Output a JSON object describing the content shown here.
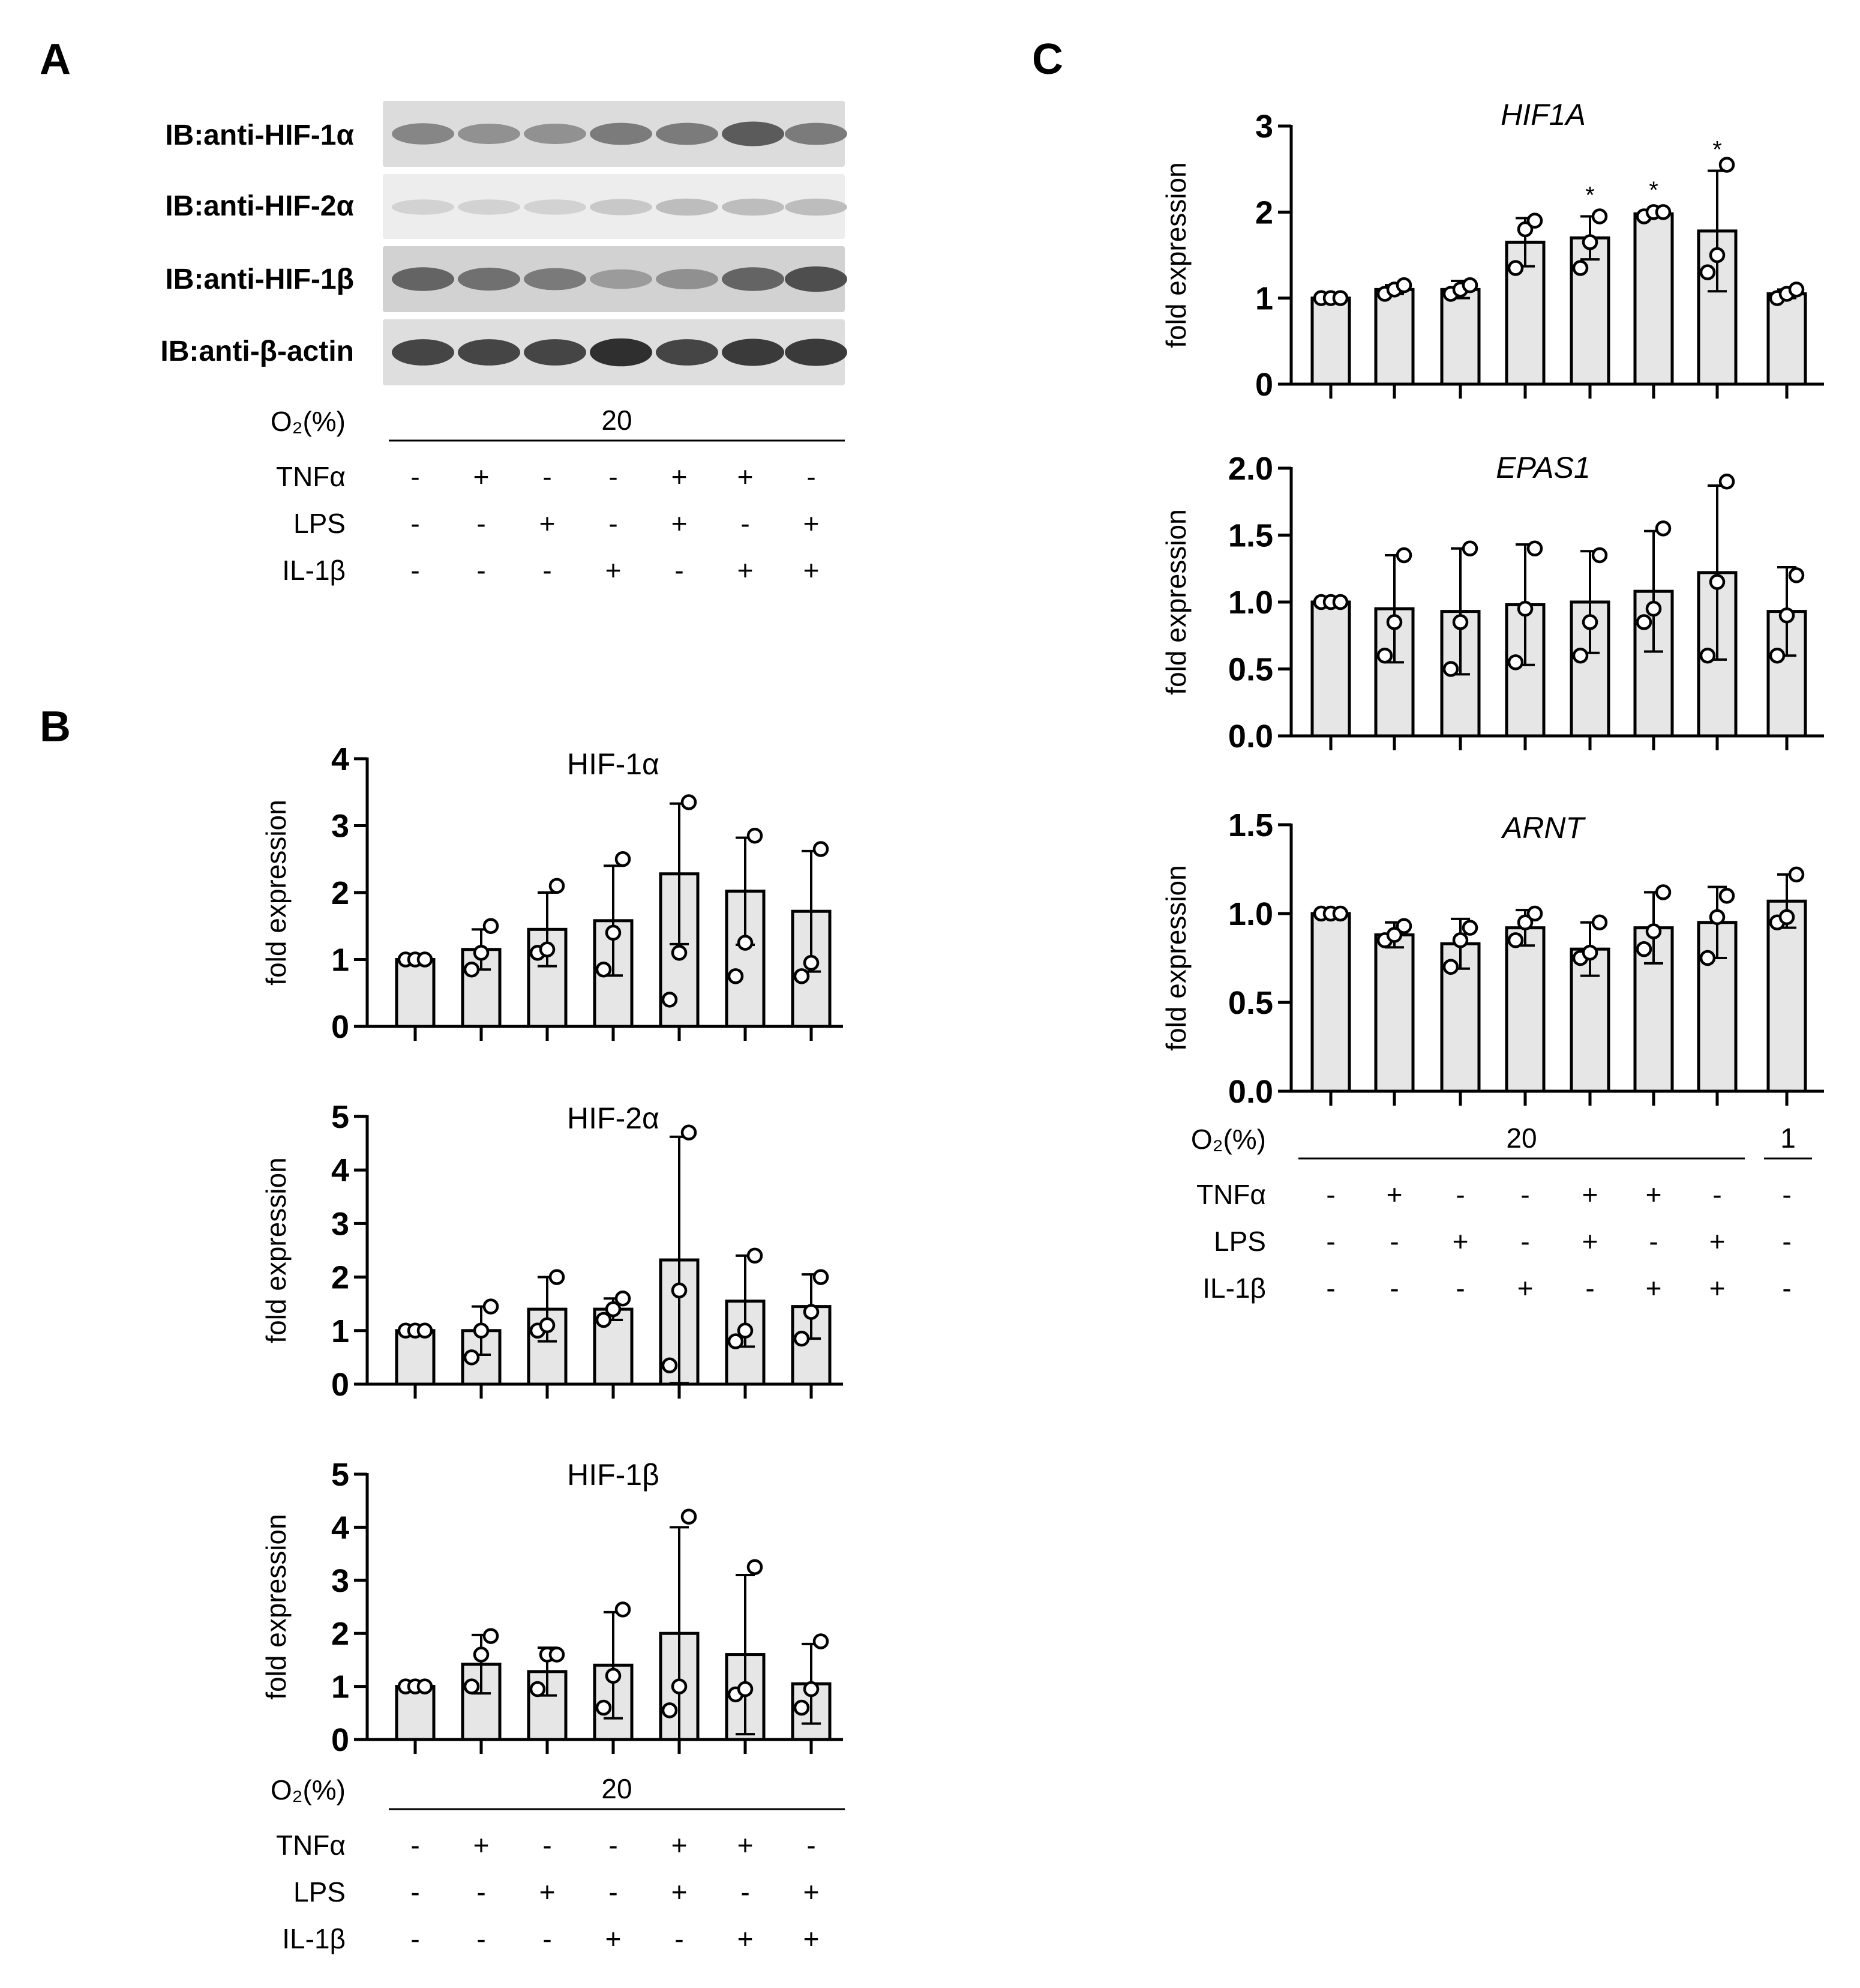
{
  "panels": {
    "a": "A",
    "b": "B",
    "c": "C"
  },
  "blot": {
    "labels": [
      "IB:anti-HIF-1α",
      "IB:anti-HIF-2α",
      "IB:anti-HIF-1β",
      "IB:anti-β-actin"
    ],
    "band_intensity": [
      [
        0.55,
        0.5,
        0.5,
        0.6,
        0.6,
        0.75,
        0.6
      ],
      [
        0.2,
        0.2,
        0.2,
        0.25,
        0.3,
        0.3,
        0.3
      ],
      [
        0.7,
        0.65,
        0.6,
        0.45,
        0.5,
        0.7,
        0.8
      ],
      [
        0.85,
        0.85,
        0.85,
        0.95,
        0.85,
        0.9,
        0.9
      ]
    ]
  },
  "conditions": {
    "o2_label": "O₂(%)",
    "o2_value": "20",
    "o2_value_hypoxia": "1",
    "rows": [
      {
        "name": "TNFα",
        "marks7": [
          "-",
          "+",
          "-",
          "-",
          "+",
          "+",
          "-"
        ],
        "marks8": [
          "-",
          "+",
          "-",
          "-",
          "+",
          "+",
          "-",
          "-"
        ]
      },
      {
        "name": "LPS",
        "marks7": [
          "-",
          "-",
          "+",
          "-",
          "+",
          "-",
          "+"
        ],
        "marks8": [
          "-",
          "-",
          "+",
          "-",
          "+",
          "-",
          "+",
          "-"
        ]
      },
      {
        "name": "IL-1β",
        "marks7": [
          "-",
          "-",
          "-",
          "+",
          "-",
          "+",
          "+"
        ],
        "marks8": [
          "-",
          "-",
          "-",
          "+",
          "-",
          "+",
          "+",
          "-"
        ]
      }
    ]
  },
  "chart_data": [
    {
      "id": "b1",
      "type": "bar",
      "title": "HIF-1α",
      "title_italic": false,
      "ylabel": "fold expression",
      "ylim": [
        0,
        4
      ],
      "yticks": [
        "0",
        "1",
        "2",
        "3",
        "4"
      ],
      "values": [
        1.0,
        1.15,
        1.45,
        1.58,
        2.28,
        2.02,
        1.72
      ],
      "errors": [
        0.0,
        0.3,
        0.55,
        0.82,
        1.05,
        0.8,
        0.9
      ],
      "points": [
        [
          1,
          1,
          1
        ],
        [
          0.85,
          1.1,
          1.5
        ],
        [
          1.1,
          1.15,
          2.1
        ],
        [
          0.85,
          1.4,
          2.5
        ],
        [
          0.4,
          1.1,
          3.35
        ],
        [
          0.75,
          1.25,
          2.85
        ],
        [
          0.75,
          0.95,
          2.65
        ]
      ],
      "stars": []
    },
    {
      "id": "b2",
      "type": "bar",
      "title": "HIF-2α",
      "title_italic": false,
      "ylabel": "fold expression",
      "ylim": [
        0,
        5
      ],
      "yticks": [
        "0",
        "1",
        "2",
        "3",
        "4",
        "5"
      ],
      "values": [
        1.0,
        1.0,
        1.4,
        1.4,
        2.32,
        1.55,
        1.45
      ],
      "errors": [
        0.0,
        0.45,
        0.6,
        0.2,
        2.3,
        0.85,
        0.6
      ],
      "points": [
        [
          1,
          1,
          1
        ],
        [
          0.5,
          1.0,
          1.45
        ],
        [
          1.0,
          1.1,
          2.0
        ],
        [
          1.2,
          1.4,
          1.6
        ],
        [
          0.35,
          1.75,
          4.7
        ],
        [
          0.8,
          1.0,
          2.4
        ],
        [
          0.85,
          1.35,
          2.0
        ]
      ],
      "stars": []
    },
    {
      "id": "b3",
      "type": "bar",
      "title": "HIF-1β",
      "title_italic": false,
      "ylabel": "fold expression",
      "ylim": [
        0,
        5
      ],
      "yticks": [
        "0",
        "1",
        "2",
        "3",
        "4",
        "5"
      ],
      "values": [
        1.0,
        1.42,
        1.28,
        1.4,
        2.0,
        1.6,
        1.05
      ],
      "errors": [
        0.0,
        0.55,
        0.45,
        1.0,
        2.0,
        1.5,
        0.75
      ],
      "points": [
        [
          1,
          1,
          1
        ],
        [
          1.0,
          1.6,
          1.95
        ],
        [
          0.95,
          1.6,
          1.6
        ],
        [
          0.6,
          1.2,
          2.45
        ],
        [
          0.55,
          1.0,
          4.2
        ],
        [
          0.85,
          0.95,
          3.25
        ],
        [
          0.6,
          0.95,
          1.85
        ]
      ],
      "stars": []
    },
    {
      "id": "c1",
      "type": "bar",
      "title": "HIF1A",
      "title_italic": true,
      "ylabel": "fold expression",
      "ylim": [
        0,
        3
      ],
      "yticks": [
        "0",
        "1",
        "2",
        "3"
      ],
      "values": [
        1.0,
        1.1,
        1.1,
        1.65,
        1.7,
        1.98,
        1.78,
        1.05
      ],
      "errors": [
        0.0,
        0.05,
        0.1,
        0.28,
        0.25,
        0.03,
        0.7,
        0.05
      ],
      "points": [
        [
          1,
          1,
          1
        ],
        [
          1.05,
          1.1,
          1.15
        ],
        [
          1.05,
          1.1,
          1.15
        ],
        [
          1.35,
          1.8,
          1.9
        ],
        [
          1.35,
          1.65,
          1.95
        ],
        [
          1.95,
          2.0,
          2.0
        ],
        [
          1.3,
          1.5,
          2.55
        ],
        [
          1.0,
          1.05,
          1.1
        ]
      ],
      "stars": [
        "",
        "",
        "",
        "",
        "*",
        "*",
        "*",
        ""
      ]
    },
    {
      "id": "c2",
      "type": "bar",
      "title": "EPAS1",
      "title_italic": true,
      "ylabel": "fold expression",
      "ylim": [
        0,
        2.0
      ],
      "yticks": [
        "0.0",
        "0.5",
        "1.0",
        "1.5",
        "2.0"
      ],
      "values": [
        1.0,
        0.95,
        0.93,
        0.98,
        1.0,
        1.08,
        1.22,
        0.93
      ],
      "errors": [
        0.0,
        0.4,
        0.47,
        0.45,
        0.38,
        0.45,
        0.65,
        0.33
      ],
      "points": [
        [
          1,
          1,
          1
        ],
        [
          0.6,
          0.85,
          1.35
        ],
        [
          0.5,
          0.85,
          1.4
        ],
        [
          0.55,
          0.95,
          1.4
        ],
        [
          0.6,
          0.85,
          1.35
        ],
        [
          0.85,
          0.95,
          1.55
        ],
        [
          0.6,
          1.15,
          1.9
        ],
        [
          0.6,
          0.9,
          1.2
        ]
      ],
      "stars": []
    },
    {
      "id": "c3",
      "type": "bar",
      "title": "ARNT",
      "title_italic": true,
      "ylabel": "fold expression",
      "ylim": [
        0,
        1.5
      ],
      "yticks": [
        "0.0",
        "0.5",
        "1.0",
        "1.5"
      ],
      "values": [
        1.0,
        0.88,
        0.83,
        0.92,
        0.8,
        0.92,
        0.95,
        1.07
      ],
      "errors": [
        0.0,
        0.07,
        0.14,
        0.1,
        0.15,
        0.2,
        0.2,
        0.15
      ],
      "points": [
        [
          1,
          1,
          1
        ],
        [
          0.85,
          0.88,
          0.93
        ],
        [
          0.7,
          0.85,
          0.92
        ],
        [
          0.85,
          0.95,
          1.0
        ],
        [
          0.75,
          0.78,
          0.95
        ],
        [
          0.8,
          0.9,
          1.12
        ],
        [
          0.75,
          0.98,
          1.1
        ],
        [
          0.95,
          0.98,
          1.22
        ]
      ],
      "stars": []
    }
  ]
}
